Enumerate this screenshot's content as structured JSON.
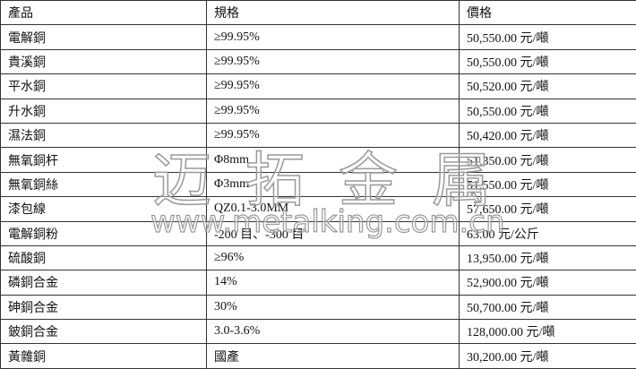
{
  "headers": [
    "產品",
    "規格",
    "價格"
  ],
  "rows": [
    [
      "電解銅",
      "≥99.95%",
      "50,550.00 元/噸"
    ],
    [
      "貴溪銅",
      "≥99.95%",
      "50,550.00 元/噸"
    ],
    [
      "平水銅",
      "≥99.95%",
      "50,520.00 元/噸"
    ],
    [
      "升水銅",
      "≥99.95%",
      "50,550.00 元/噸"
    ],
    [
      "濕法銅",
      "≥99.95%",
      "50,420.00 元/噸"
    ],
    [
      "無氧銅杆",
      "Φ8mm",
      "51,350.00 元/噸"
    ],
    [
      "無氧銅絲",
      "Φ3mm",
      "51,550.00 元/噸"
    ],
    [
      "漆包線",
      "QZ0.1-3.0MM",
      "57,650.00 元/噸"
    ],
    [
      "電解銅粉",
      "-200 目、-300 目",
      "63.00 元/公斤"
    ],
    [
      "硫酸銅",
      "≥96%",
      "13,950.00 元/噸"
    ],
    [
      "磷銅合金",
      "14%",
      "52,900.00 元/噸"
    ],
    [
      "砷銅合金",
      "30%",
      "50,700.00 元/噸"
    ],
    [
      "鈹銅合金",
      "3.0-3.6%",
      "128,000.00 元/噸"
    ],
    [
      "黃雜銅",
      "國產",
      "30,200.00 元/噸"
    ]
  ],
  "watermark": {
    "title": "迈拓金属",
    "url": "www.metalking.com.cn"
  }
}
